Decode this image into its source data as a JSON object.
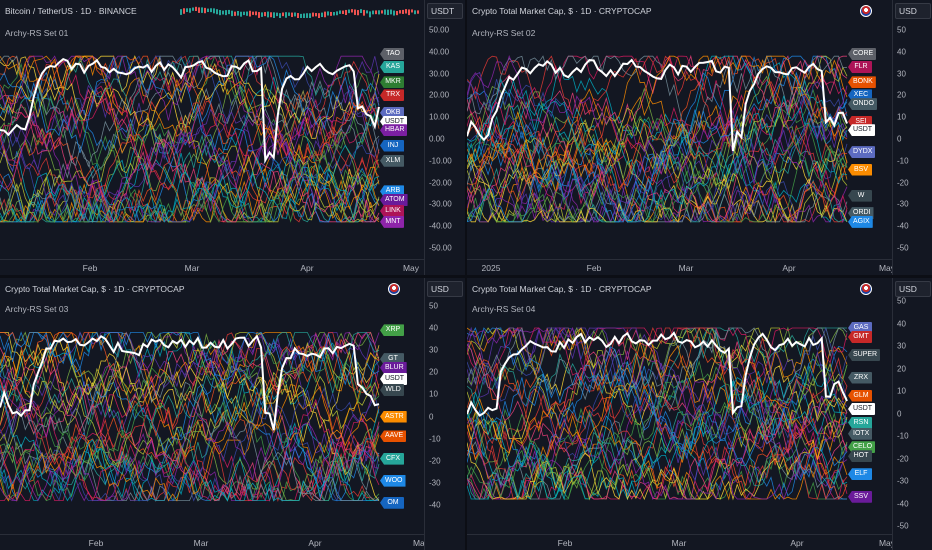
{
  "colors": {
    "background": "#131722",
    "usdt_line": "#ffffff",
    "palette": [
      "#e53935",
      "#43a047",
      "#1e88e5",
      "#fb8c00",
      "#8e24aa",
      "#00acc1",
      "#fdd835",
      "#d81b60",
      "#5e35b1",
      "#7cb342",
      "#f4511e",
      "#3949ab",
      "#26a69a",
      "#c0ca33",
      "#ec407a",
      "#78909c"
    ]
  },
  "top_left": {
    "title": "Bitcoin / TetherUS · 1D · BINANCE",
    "currency": "USDT",
    "pane_title": "Archy-RS Set 01",
    "scale_ticks": [
      "50.00",
      "40.00",
      "30.00",
      "20.00",
      "10.00",
      "0.00",
      "-10.00",
      "-20.00",
      "-30.00",
      "-40.00",
      "-50.00"
    ],
    "time_labels": [
      "Feb",
      "Mar",
      "Apr",
      "May"
    ],
    "tags": [
      {
        "label": "TAO",
        "color": "#5d6068",
        "value": 39
      },
      {
        "label": "KAS",
        "color": "#26a69a",
        "value": 33
      },
      {
        "label": "MKR",
        "color": "#2e7d32",
        "value": 26
      },
      {
        "label": "TRX",
        "color": "#c62828",
        "value": 20
      },
      {
        "label": "OKB",
        "color": "#5c6bc0",
        "value": 12
      },
      {
        "label": "USDT",
        "color": "#ffffff",
        "value": 8
      },
      {
        "label": "HBAR",
        "color": "#7b1fa2",
        "value": 4
      },
      {
        "label": "INJ",
        "color": "#1565c0",
        "value": -3
      },
      {
        "label": "XLM",
        "color": "#455a64",
        "value": -10
      },
      {
        "label": "ARB",
        "color": "#1e88e5",
        "value": -24
      },
      {
        "label": "ATOM",
        "color": "#6a1b9a",
        "value": -28
      },
      {
        "label": "LINK",
        "color": "#ad1457",
        "value": -33
      },
      {
        "label": "MNT",
        "color": "#8e24aa",
        "value": -38
      }
    ]
  },
  "top_right": {
    "title": "Crypto Total Market Cap, $ · 1D · CRYPTOCAP",
    "currency": "USD",
    "pane_title": "Archy-RS Set 02",
    "scale_ticks": [
      "50",
      "40",
      "30",
      "20",
      "10",
      "0",
      "-10",
      "-20",
      "-30",
      "-40",
      "-50"
    ],
    "time_labels": [
      "2025",
      "Feb",
      "Mar",
      "Apr",
      "May"
    ],
    "tags": [
      {
        "label": "CORE",
        "color": "#5d6068",
        "value": 39
      },
      {
        "label": "FLR",
        "color": "#ad1457",
        "value": 33
      },
      {
        "label": "BONK",
        "color": "#e65100",
        "value": 26
      },
      {
        "label": "XEC",
        "color": "#1565c0",
        "value": 20
      },
      {
        "label": "ONDO",
        "color": "#455a64",
        "value": 16
      },
      {
        "label": "SEI",
        "color": "#c62828",
        "value": 8
      },
      {
        "label": "USDT",
        "color": "#ffffff",
        "value": 4
      },
      {
        "label": "DYDX",
        "color": "#5c6bc0",
        "value": -6
      },
      {
        "label": "BSV",
        "color": "#fb8c00",
        "value": -14
      },
      {
        "label": "W",
        "color": "#37474f",
        "value": -26
      },
      {
        "label": "ORDI",
        "color": "#455a64",
        "value": -34
      },
      {
        "label": "AGIX",
        "color": "#1e88e5",
        "value": -38
      }
    ]
  },
  "bottom_left": {
    "title": "Crypto Total Market Cap, $ · 1D · CRYPTOCAP",
    "currency": "USD",
    "pane_title": "Archy-RS Set 03",
    "scale_ticks": [
      "50",
      "40",
      "30",
      "20",
      "10",
      "0",
      "-10",
      "-20",
      "-30",
      "-40"
    ],
    "time_labels": [
      "Feb",
      "Mar",
      "Apr",
      "May"
    ],
    "tags": [
      {
        "label": "XRP",
        "color": "#43a047",
        "value": 39
      },
      {
        "label": "GT",
        "color": "#455a64",
        "value": 26
      },
      {
        "label": "BLUR",
        "color": "#6a1b9a",
        "value": 22
      },
      {
        "label": "USDT",
        "color": "#ffffff",
        "value": 17
      },
      {
        "label": "WLD",
        "color": "#37474f",
        "value": 12
      },
      {
        "label": "ASTR",
        "color": "#fb8c00",
        "value": 0
      },
      {
        "label": "AAVE",
        "color": "#e65100",
        "value": -9
      },
      {
        "label": "CFX",
        "color": "#26a69a",
        "value": -19
      },
      {
        "label": "WOO",
        "color": "#1e88e5",
        "value": -29
      },
      {
        "label": "OM",
        "color": "#1565c0",
        "value": -39
      }
    ]
  },
  "bottom_right": {
    "title": "Crypto Total Market Cap, $ · 1D · CRYPTOCAP",
    "currency": "USD",
    "pane_title": "Archy-RS Set 04",
    "scale_ticks": [
      "50",
      "40",
      "30",
      "20",
      "10",
      "0",
      "-10",
      "-20",
      "-30",
      "-40",
      "-50"
    ],
    "time_labels": [
      "Feb",
      "Mar",
      "Apr",
      "May"
    ],
    "tags": [
      {
        "label": "GAS",
        "color": "#5c6bc0",
        "value": 38
      },
      {
        "label": "GMT",
        "color": "#c62828",
        "value": 34
      },
      {
        "label": "SUPER",
        "color": "#37474f",
        "value": 26
      },
      {
        "label": "ZRX",
        "color": "#455a64",
        "value": 16
      },
      {
        "label": "GLM",
        "color": "#e65100",
        "value": 8
      },
      {
        "label": "USDT",
        "color": "#ffffff",
        "value": 2
      },
      {
        "label": "RSN",
        "color": "#26a69a",
        "value": -4
      },
      {
        "label": "IOTX",
        "color": "#455a64",
        "value": -9
      },
      {
        "label": "CELO",
        "color": "#43a047",
        "value": -15
      },
      {
        "label": "HOT",
        "color": "#37474f",
        "value": -19
      },
      {
        "label": "ELF",
        "color": "#1e88e5",
        "value": -27
      },
      {
        "label": "SSV",
        "color": "#6a1b9a",
        "value": -37
      }
    ]
  }
}
